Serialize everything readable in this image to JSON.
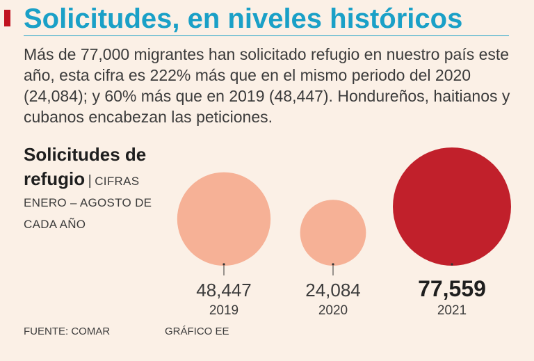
{
  "header": {
    "title": "Solicitudes, en niveles históricos",
    "accent_color": "#c1121f",
    "title_color": "#1aa0c7"
  },
  "intro": {
    "text": "Más de 77,000 migrantes han solicitado refugio en nuestro país este año, esta cifra es 222% más que en el mismo periodo del 2020 (24,084); y 60% más que en 2019 (48,447). Hondureños, haitianos y cubanos encabezan las peticiones."
  },
  "chart_data": {
    "type": "bubble",
    "title": "Solicitudes de refugio",
    "separator": "|",
    "subtitle": "CIFRAS ENERO – AGOSTO DE CADA AÑO",
    "categories": [
      "2019",
      "2020",
      "2021"
    ],
    "values": [
      48447,
      24084,
      77559
    ],
    "value_labels": [
      "48,447",
      "24,084",
      "77,559"
    ],
    "highlight": "2021",
    "colors": {
      "normal": "#f6b196",
      "highlight": "#c1202b"
    }
  },
  "footer": {
    "source": "FUENTE: COMAR",
    "credit": "GRÁFICO EE"
  }
}
